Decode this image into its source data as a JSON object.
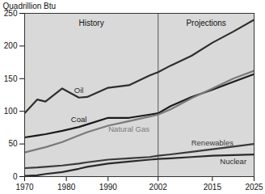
{
  "chart_data": {
    "type": "line",
    "y_label": "Quadrillion Btu",
    "annotations": [
      "History",
      "Projections"
    ],
    "x_divider": 2002,
    "x": [
      1970,
      1973,
      1975,
      1979,
      1983,
      1985,
      1990,
      1995,
      2000,
      2002,
      2005,
      2010,
      2015,
      2020,
      2025
    ],
    "series": [
      {
        "name": "Oil",
        "color": "#2e2e2e",
        "values": [
          97,
          118,
          115,
          135,
          121,
          122,
          136,
          140,
          155,
          160,
          170,
          185,
          205,
          222,
          240
        ]
      },
      {
        "name": "Coal",
        "color": "#1a1a1a",
        "values": [
          60,
          63,
          65,
          70,
          76,
          80,
          90,
          90,
          95,
          97,
          108,
          122,
          133,
          145,
          157
        ]
      },
      {
        "name": "Natural Gas",
        "color": "#7a7a7a",
        "values": [
          37,
          42,
          45,
          53,
          63,
          68,
          78,
          85,
          92,
          95,
          103,
          120,
          135,
          150,
          162
        ]
      },
      {
        "name": "Renewables",
        "color": "#3a3a3a",
        "values": [
          13,
          14,
          15,
          17,
          20,
          22,
          26,
          28,
          30,
          32,
          34,
          38,
          42,
          46,
          50
        ]
      },
      {
        "name": "Nuclear",
        "color": "#2a2a2a",
        "values": [
          1,
          2,
          4,
          7,
          12,
          15,
          20,
          23,
          26,
          27,
          28,
          30,
          32,
          33,
          34
        ]
      }
    ],
    "xlim": [
      1970,
      2025
    ],
    "xticks": [
      1970,
      1980,
      1990,
      2002,
      2015,
      2025
    ],
    "ylim": [
      0,
      250
    ],
    "yticks": [
      0,
      50,
      100,
      150,
      200,
      250
    ],
    "grid": false,
    "legend": "none"
  }
}
